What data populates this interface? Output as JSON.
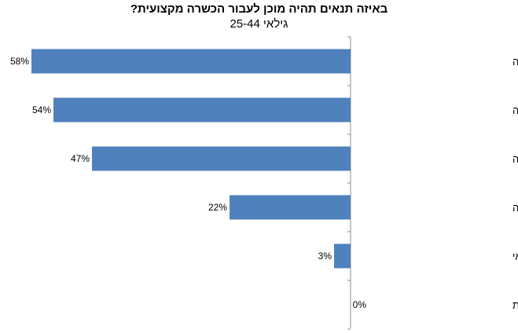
{
  "chart_data": {
    "type": "bar",
    "orientation": "horizontal",
    "title": "באיזה תנאים תהיה מוכן לעבור הכשרה מקצועית?",
    "subtitle": "גילאי 25-44",
    "categories": [
      "אפשרות בחירת תחום ההכשרה",
      "דמי קיום בגובה דמי אבטלה",
      "עבודה מובטחת בתחום ההכשרה",
      "מעורבות מעסיק בהכשרה",
      "מוכנים ללא כל תנאי",
      "לא יודע/ת"
    ],
    "values": [
      58,
      54,
      47,
      22,
      3,
      0
    ],
    "value_labels": [
      "58%",
      "54%",
      "47%",
      "22%",
      "3%",
      "0%"
    ],
    "unit": "%",
    "bar_color": "#4F81BD",
    "xlim": [
      0,
      60
    ],
    "grid": false,
    "legend": "none"
  }
}
